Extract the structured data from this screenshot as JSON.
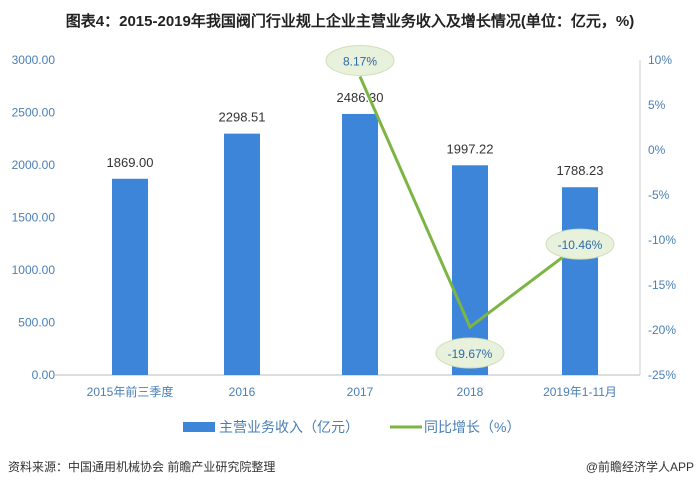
{
  "chart_data": {
    "type": "bar+line",
    "title": "图表4：2015-2019年我国阀门行业规上企业主营业务收入及增长情况(单位：亿元，%)",
    "categories": [
      "2015年前三季度",
      "2016",
      "2017",
      "2018",
      "2019年1-11月"
    ],
    "series": [
      {
        "name": "主营业务收入（亿元）",
        "type": "bar",
        "axis": "left",
        "color": "#3d85d8",
        "values": [
          1869.0,
          2298.51,
          2486.3,
          1997.22,
          1788.23
        ],
        "labels": [
          "1869.00",
          "2298.51",
          "2486.30",
          "1997.22",
          "1788.23"
        ]
      },
      {
        "name": "同比增长（%）",
        "type": "line",
        "axis": "right",
        "color": "#7db543",
        "values": [
          null,
          null,
          8.17,
          -19.67,
          -10.46
        ],
        "labels": [
          "",
          "",
          "8.17%",
          "-19.67%",
          "-10.46%"
        ]
      }
    ],
    "left_axis": {
      "range": [
        0,
        3000
      ],
      "ticks": [
        "0.00",
        "500.00",
        "1000.00",
        "1500.00",
        "2000.00",
        "2500.00",
        "3000.00"
      ]
    },
    "right_axis": {
      "range": [
        -25,
        10
      ],
      "ticks": [
        "-25%",
        "-20%",
        "-15%",
        "-10%",
        "-5%",
        "0%",
        "5%",
        "10%"
      ]
    },
    "legend_position": "bottom",
    "grid": false
  },
  "footer": {
    "source": "资料来源：中国通用机械协会 前瞻产业研究院整理",
    "credit": "@前瞻经济学人APP"
  },
  "watermark": "前瞻产业研究院"
}
